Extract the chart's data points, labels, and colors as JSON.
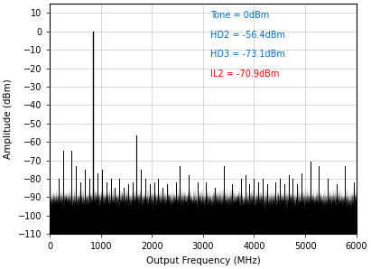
{
  "title": "",
  "xlabel": "Output Frequency (MHz)",
  "ylabel": "Amplitude (dBm)",
  "xlim": [
    0,
    6000
  ],
  "ylim": [
    -110,
    15
  ],
  "yticks": [
    -110,
    -100,
    -90,
    -80,
    -70,
    -60,
    -50,
    -40,
    -30,
    -20,
    -10,
    0,
    10
  ],
  "xticks": [
    0,
    1000,
    2000,
    3000,
    4000,
    5000,
    6000
  ],
  "annotation_lines": [
    "Tone = 0dBm",
    "HD2 = -56.4dBm",
    "HD3 = -73.1dBm",
    "IL2 = -70.9dBm"
  ],
  "annotation_colors": [
    "#0070c0",
    "#0070c0",
    "#0070c0",
    "#ff0000"
  ],
  "noise_floor": -90,
  "noise_amplitude": 2.5,
  "bg_color": "#ffffff",
  "spine_color": "#000000",
  "tone_freq": 850,
  "tone_amp": 0,
  "hd2_freq": 1700,
  "hd2_amp": -56.4,
  "hd3_freq": 2550,
  "hd3_amp": -73.1,
  "il2_freq": 5100,
  "il2_amp": -70.9,
  "spurs": [
    [
      170,
      -80
    ],
    [
      255,
      -65
    ],
    [
      425,
      -65
    ],
    [
      510,
      -73
    ],
    [
      595,
      -82
    ],
    [
      680,
      -75
    ],
    [
      765,
      -80
    ],
    [
      930,
      -77
    ],
    [
      1020,
      -75
    ],
    [
      1105,
      -82
    ],
    [
      1190,
      -80
    ],
    [
      1275,
      -85
    ],
    [
      1360,
      -80
    ],
    [
      1445,
      -85
    ],
    [
      1530,
      -83
    ],
    [
      1615,
      -82
    ],
    [
      1785,
      -75
    ],
    [
      1870,
      -80
    ],
    [
      1955,
      -83
    ],
    [
      2040,
      -82
    ],
    [
      2125,
      -80
    ],
    [
      2210,
      -85
    ],
    [
      2295,
      -83
    ],
    [
      2465,
      -82
    ],
    [
      2720,
      -78
    ],
    [
      2890,
      -82
    ],
    [
      3060,
      -82
    ],
    [
      3230,
      -85
    ],
    [
      3400,
      -73
    ],
    [
      3570,
      -83
    ],
    [
      3740,
      -80
    ],
    [
      3825,
      -78
    ],
    [
      3910,
      -83
    ],
    [
      3995,
      -80
    ],
    [
      4080,
      -82
    ],
    [
      4165,
      -80
    ],
    [
      4250,
      -83
    ],
    [
      4420,
      -82
    ],
    [
      4505,
      -80
    ],
    [
      4590,
      -83
    ],
    [
      4675,
      -78
    ],
    [
      4760,
      -80
    ],
    [
      4845,
      -83
    ],
    [
      4930,
      -77
    ],
    [
      5270,
      -73
    ],
    [
      5440,
      -80
    ],
    [
      5610,
      -83
    ],
    [
      5780,
      -73
    ],
    [
      5950,
      -82
    ]
  ]
}
